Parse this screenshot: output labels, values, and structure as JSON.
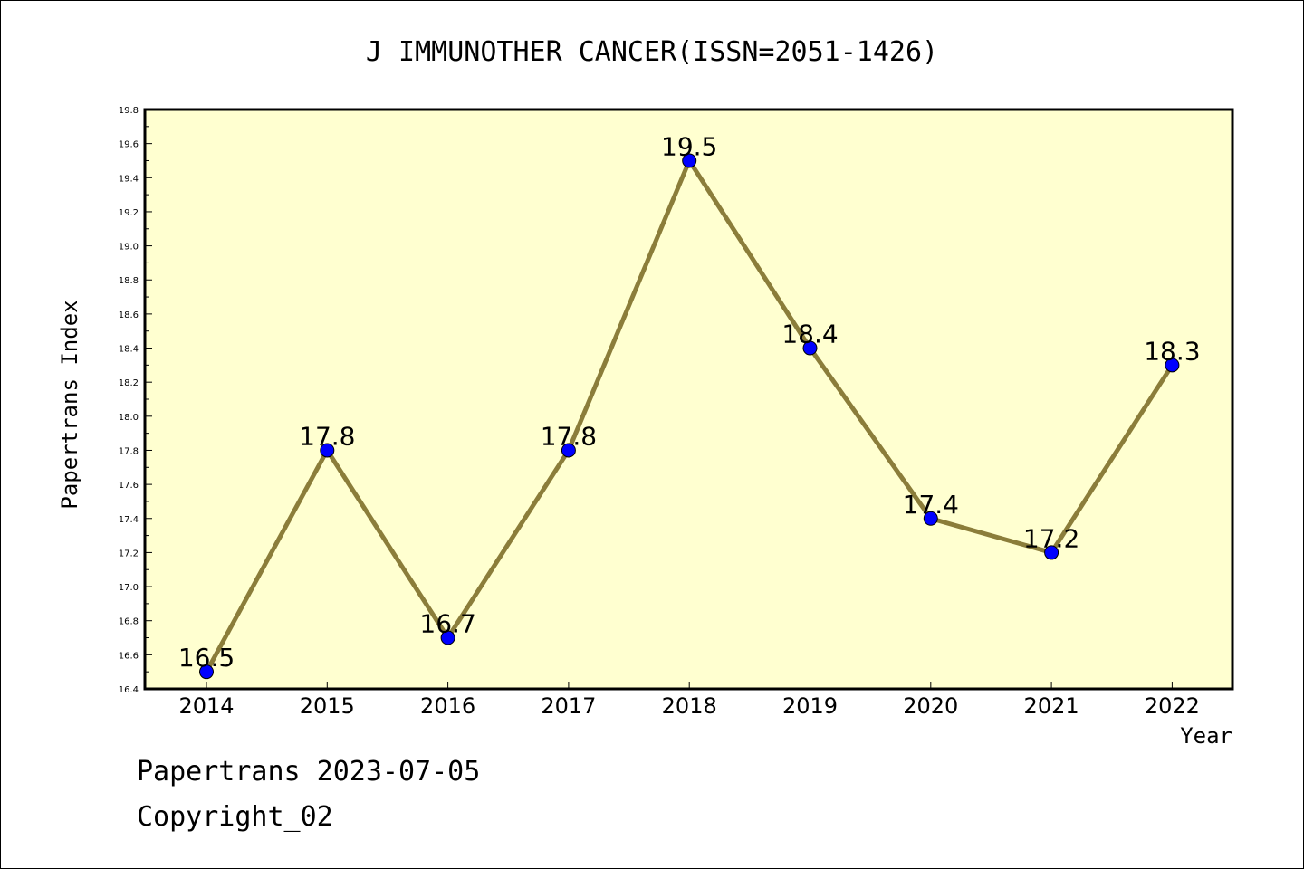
{
  "chart_data": {
    "type": "line",
    "title": "J IMMUNOTHER CANCER(ISSN=2051-1426)",
    "xlabel": "Year",
    "ylabel": "Papertrans Index",
    "categories": [
      "2014",
      "2015",
      "2016",
      "2017",
      "2018",
      "2019",
      "2020",
      "2021",
      "2022"
    ],
    "values": [
      16.5,
      17.8,
      16.7,
      17.8,
      19.5,
      18.4,
      17.4,
      17.2,
      18.3
    ],
    "value_labels": [
      "16.5",
      "17.8",
      "16.7",
      "17.8",
      "19.5",
      "18.4",
      "17.4",
      "17.2",
      "18.3"
    ],
    "ylim": [
      16.4,
      19.8
    ],
    "yticks": [
      "16.4",
      "16.6",
      "16.8",
      "17.0",
      "17.2",
      "17.4",
      "17.6",
      "17.8",
      "18.0",
      "18.2",
      "18.4",
      "18.6",
      "18.8",
      "19.0",
      "19.2",
      "19.4",
      "19.6",
      "19.8"
    ],
    "grid": false,
    "colors": {
      "plot_background": "#ffffd0",
      "line": "#8b7d3a",
      "marker": "#0000ff"
    }
  },
  "footer": {
    "line1": "Papertrans 2023-07-05",
    "line2": "Copyright_02"
  }
}
